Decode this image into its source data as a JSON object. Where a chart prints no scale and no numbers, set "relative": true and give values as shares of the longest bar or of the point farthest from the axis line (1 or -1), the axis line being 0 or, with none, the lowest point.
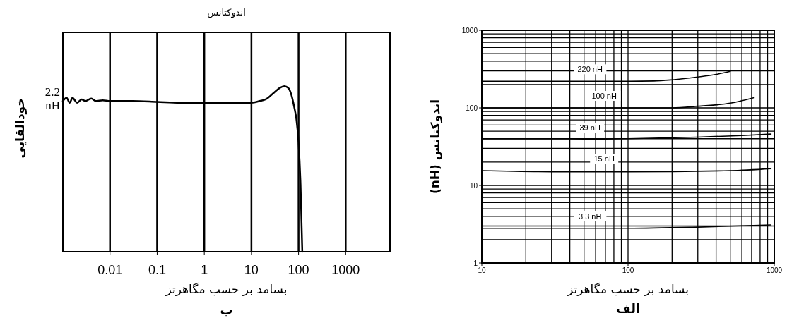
{
  "chart_data": [
    {
      "type": "line",
      "title": "اندوکتانس",
      "xlabel": "بسامد بر حسب مگاهرتز",
      "ylabel": "خودالقایی",
      "relative": true,
      "log": "x",
      "grid": "x",
      "xlim": [
        0.001,
        8700
      ],
      "xticks": [
        0.01,
        0.1,
        1,
        10,
        100,
        1000
      ],
      "annotations": [
        "2.2 nH",
        "ب"
      ],
      "series": [
        {
          "color": "#000000",
          "x": [
            0.001,
            0.0012,
            0.0014,
            0.0016,
            0.002,
            0.0025,
            0.003,
            0.004,
            0.005,
            0.007,
            0.01,
            0.03,
            0.1,
            0.3,
            1,
            3,
            10,
            15,
            20,
            30,
            40,
            50,
            60,
            70,
            80,
            90,
            100,
            110,
            120
          ],
          "values": [
            0.91,
            0.93,
            0.9,
            0.93,
            0.9,
            0.92,
            0.91,
            0.925,
            0.91,
            0.915,
            0.91,
            0.91,
            0.905,
            0.9,
            0.9,
            0.9,
            0.9,
            0.91,
            0.92,
            0.96,
            0.99,
            1.0,
            0.99,
            0.95,
            0.88,
            0.8,
            0.66,
            0.41,
            0
          ]
        }
      ]
    },
    {
      "type": "line",
      "xlabel": "بسامد بر حسب مگاهرتز",
      "ylabel": "اندوکتانس (nH)",
      "log": "xy",
      "grid": true,
      "xlim": [
        10,
        1000
      ],
      "ylim": [
        1,
        1000
      ],
      "xticks": [
        10,
        100,
        1000
      ],
      "yticks": [
        1,
        10,
        100,
        1000
      ],
      "annotations": [
        "الف"
      ],
      "series": [
        {
          "name": "220 nH",
          "color": "#000000",
          "x": [
            10,
            50,
            100,
            150,
            200,
            300,
            400,
            500
          ],
          "values": [
            220,
            220,
            220,
            222,
            230,
            250,
            270,
            295
          ]
        },
        {
          "name": "100 nH",
          "color": "#000000",
          "x": [
            10,
            50,
            100,
            200,
            300,
            500,
            720
          ],
          "values": [
            100,
            100,
            100,
            100,
            105,
            115,
            135
          ]
        },
        {
          "name": "39 nH",
          "color": "#000000",
          "x": [
            10,
            30,
            100,
            300,
            600,
            950
          ],
          "values": [
            39,
            39,
            40,
            42,
            44,
            46
          ]
        },
        {
          "name": "15 nH",
          "color": "#000000",
          "x": [
            10,
            30,
            100,
            500,
            950
          ],
          "values": [
            15.5,
            15,
            15,
            15.5,
            16.5
          ]
        },
        {
          "name": "3.3 nH",
          "color": "#000000",
          "x": [
            10,
            100,
            300,
            950
          ],
          "values": [
            2.8,
            2.8,
            2.9,
            3.1
          ]
        }
      ]
    }
  ]
}
